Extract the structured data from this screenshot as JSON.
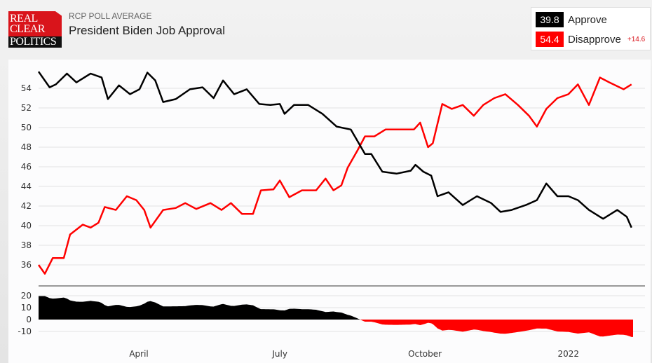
{
  "header": {
    "logo_text": [
      "REAL",
      "CLEAR",
      "POLITICS"
    ],
    "subtitle": "RCP POLL AVERAGE",
    "title": "President Biden Job Approval"
  },
  "legend": {
    "approve_value": "39.8",
    "approve_label": "Approve",
    "disapprove_value": "54.4",
    "disapprove_label": "Disapprove",
    "spread": "+14.6"
  },
  "colors": {
    "approve": "#000000",
    "disapprove": "#ff0000"
  },
  "chart_data": {
    "type": "line",
    "title": "President Biden Job Approval",
    "x_units": "days since Jan 20, 2021 (approx.)",
    "xlim": [
      0,
      377
    ],
    "x_ticks": [
      {
        "x": 63.6,
        "label": "April"
      },
      {
        "x": 153,
        "label": "July"
      },
      {
        "x": 245,
        "label": "October"
      },
      {
        "x": 336,
        "label": "2022"
      }
    ],
    "ylim": [
      34.3,
      56
    ],
    "y_ticks": [
      36,
      38,
      40,
      42,
      44,
      46,
      48,
      50,
      52,
      54
    ],
    "spread_ylim": [
      -20,
      22
    ],
    "spread_ticks": [
      20,
      10,
      0,
      -10
    ],
    "grid": true,
    "series": [
      {
        "name": "Approve",
        "color": "#000000",
        "x": [
          0,
          7,
          11,
          18,
          24,
          33,
          40,
          44,
          51,
          58,
          64,
          69,
          74,
          79,
          87,
          96,
          104,
          111,
          117,
          124,
          132,
          140,
          147,
          153,
          156,
          162,
          171,
          180,
          189,
          198,
          202,
          207,
          211,
          218,
          227,
          236,
          239,
          244,
          249,
          253,
          260,
          269,
          278,
          287,
          293,
          300,
          309,
          316,
          322,
          329,
          336,
          342,
          349,
          358,
          367,
          373,
          376
        ],
        "values": [
          55.7,
          54.1,
          54.4,
          55.5,
          54.6,
          55.5,
          55.1,
          52.9,
          54.3,
          53.4,
          53.9,
          55.6,
          54.8,
          52.6,
          52.9,
          53.9,
          54.1,
          53.0,
          54.8,
          53.4,
          53.9,
          52.4,
          52.3,
          52.4,
          51.4,
          52.3,
          52.3,
          51.4,
          50.1,
          49.8,
          48.7,
          47.3,
          47.3,
          45.5,
          45.3,
          45.6,
          46.2,
          45.5,
          45.1,
          43.0,
          43.4,
          42.1,
          43.0,
          42.3,
          41.4,
          41.6,
          42.1,
          42.6,
          44.3,
          43.0,
          43.0,
          42.6,
          41.6,
          40.7,
          41.6,
          40.9,
          39.8
        ]
      },
      {
        "name": "Disapprove",
        "color": "#ff0000",
        "x": [
          0,
          4,
          9,
          16,
          20,
          28,
          33,
          38,
          42,
          49,
          56,
          62,
          67,
          71,
          79,
          87,
          93,
          100,
          109,
          116,
          122,
          129,
          136,
          141,
          149,
          153,
          159,
          167,
          176,
          182,
          187,
          192,
          196,
          202,
          207,
          213,
          220,
          229,
          238,
          242,
          247,
          250,
          256,
          262,
          269,
          276,
          282,
          289,
          296,
          304,
          311,
          316,
          322,
          329,
          336,
          342,
          349,
          356,
          362,
          371,
          376
        ],
        "values": [
          36.0,
          35.1,
          36.7,
          36.7,
          39.1,
          40.1,
          39.8,
          40.3,
          41.9,
          41.6,
          43.0,
          42.6,
          41.6,
          39.8,
          41.6,
          41.8,
          42.3,
          41.7,
          42.3,
          41.6,
          42.3,
          41.2,
          41.2,
          43.6,
          43.7,
          44.6,
          42.9,
          43.6,
          43.6,
          44.8,
          43.6,
          44.1,
          45.9,
          47.6,
          49.1,
          49.1,
          49.8,
          49.8,
          49.8,
          50.5,
          48.0,
          48.4,
          52.4,
          51.9,
          52.3,
          51.2,
          52.3,
          53.0,
          53.4,
          52.3,
          51.2,
          50.1,
          51.9,
          53.0,
          53.4,
          54.4,
          52.3,
          55.1,
          54.6,
          53.9,
          54.4
        ]
      }
    ]
  }
}
